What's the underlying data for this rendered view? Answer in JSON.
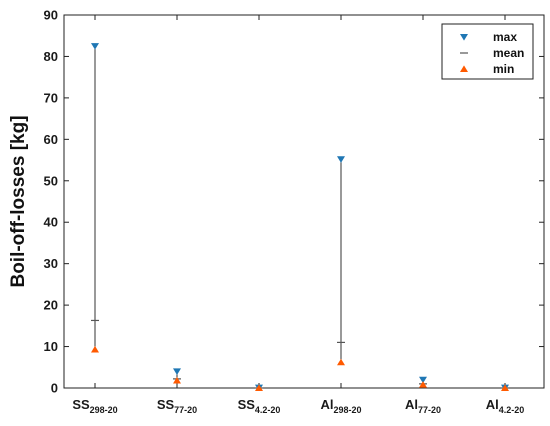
{
  "chart_data": {
    "type": "errorbar",
    "title": "",
    "xlabel": "",
    "ylabel": "Boil-off-losses [kg]",
    "ylim": [
      0,
      90
    ],
    "yticks": [
      0,
      10,
      20,
      30,
      40,
      50,
      60,
      70,
      80,
      90
    ],
    "grid": false,
    "legend_position": "top-right",
    "categories": [
      {
        "main": "SS",
        "sub": "298-20"
      },
      {
        "main": "SS",
        "sub": "77-20"
      },
      {
        "main": "SS",
        "sub": "4.2-20"
      },
      {
        "main": "Al",
        "sub": "298-20"
      },
      {
        "main": "Al",
        "sub": "77-20"
      },
      {
        "main": "Al",
        "sub": "4.2-20"
      }
    ],
    "series": [
      {
        "name": "max",
        "marker": "triangle-down",
        "color": "#1f77b4",
        "values": [
          82.5,
          4.0,
          0.1,
          55.2,
          2.0,
          0.1
        ]
      },
      {
        "name": "mean",
        "marker": "dash",
        "color": "#555555",
        "values": [
          16.3,
          2.2,
          0.0,
          11.0,
          1.0,
          0.0
        ]
      },
      {
        "name": "min",
        "marker": "triangle-up",
        "color": "#ff5a00",
        "values": [
          9.3,
          1.8,
          0.0,
          6.2,
          0.8,
          0.0
        ]
      }
    ]
  }
}
